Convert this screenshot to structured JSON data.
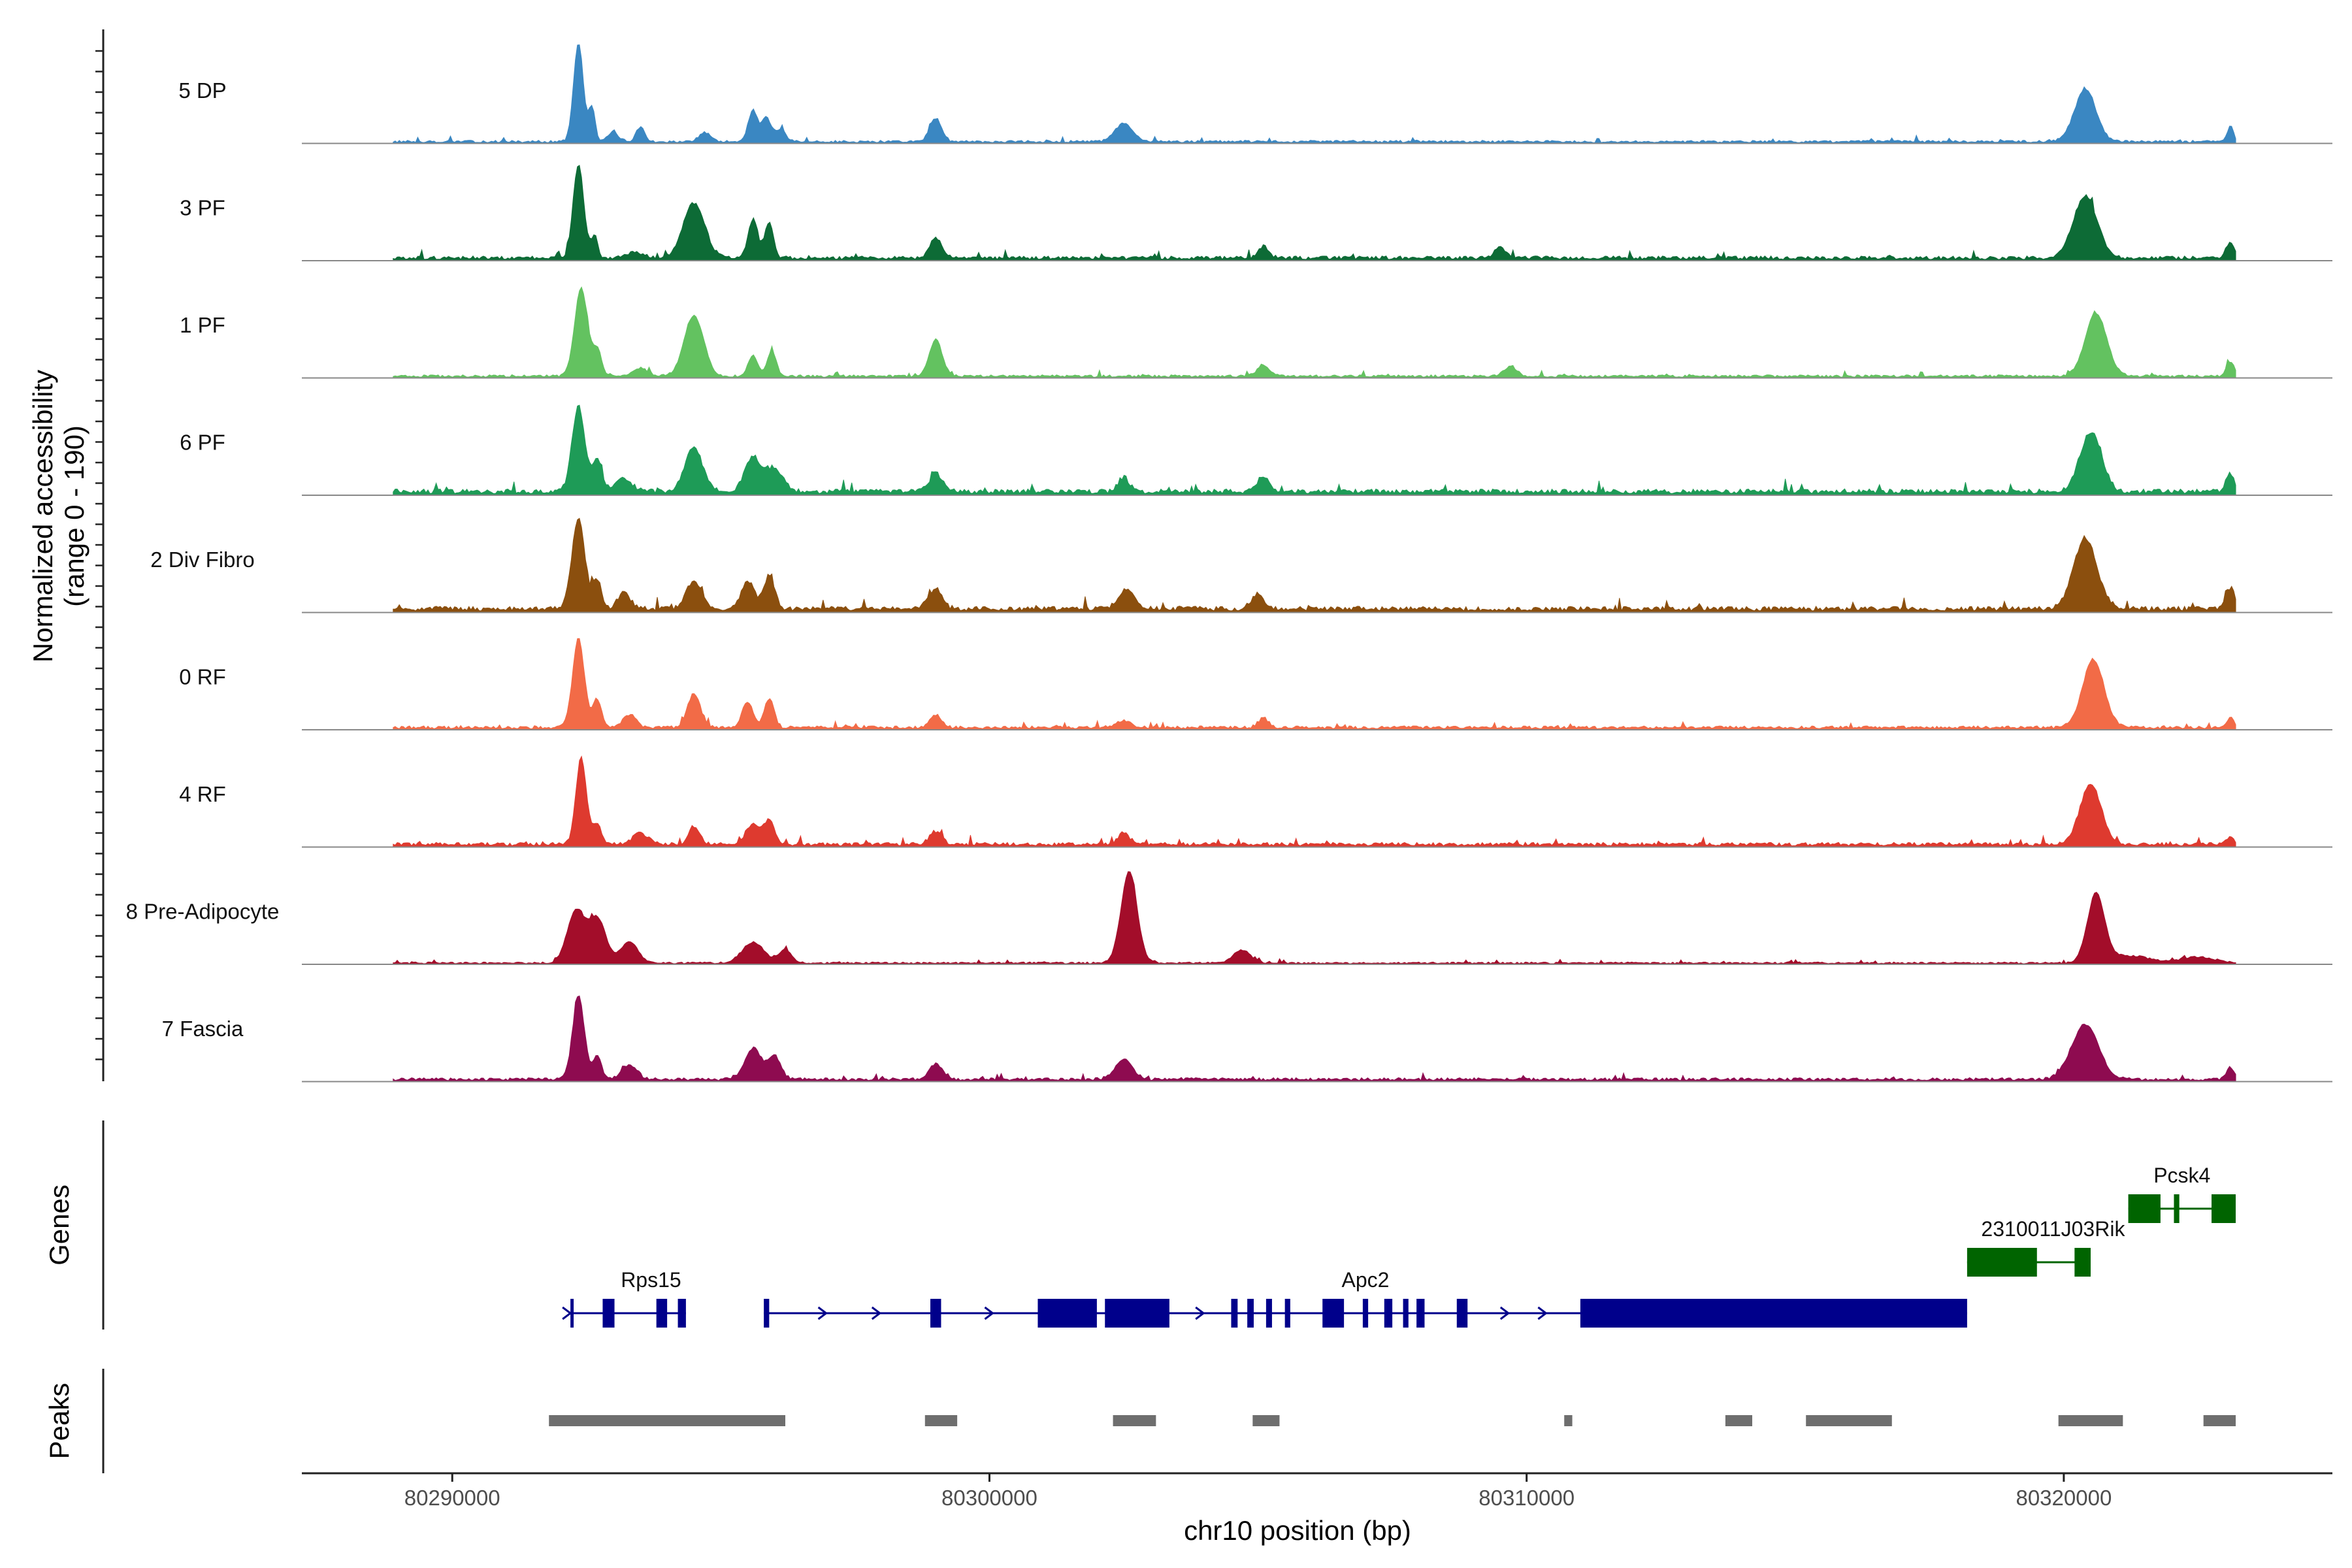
{
  "chart_data": {
    "type": "area",
    "title": "",
    "ylabel_line1": "Normalized accessibility",
    "ylabel_line2": "(range 0 - 190)",
    "genes_label": "Genes",
    "peaks_label": "Peaks",
    "xlabel": "chr10 position (bp)",
    "xlim": [
      80287200,
      80325000
    ],
    "ylim": [
      0,
      190
    ],
    "x_ticks": [
      80290000,
      80300000,
      80310000,
      80320000
    ],
    "x_tick_labels": [
      "80290000",
      "80300000",
      "80310000",
      "80320000"
    ],
    "coverage_range": [
      80288900,
      80323200
    ],
    "tracks": [
      {
        "name": "5 DP",
        "color": "#3a87c2",
        "peaks": [
          [
            80292350,
            190,
            90
          ],
          [
            80292600,
            65,
            60
          ],
          [
            80293000,
            18,
            100
          ],
          [
            80293500,
            28,
            80
          ],
          [
            80294700,
            18,
            100
          ],
          [
            80295600,
            60,
            90
          ],
          [
            80295850,
            45,
            80
          ],
          [
            80296100,
            22,
            100
          ],
          [
            80299000,
            45,
            110
          ],
          [
            80302500,
            35,
            160
          ],
          [
            80320400,
            100,
            200
          ],
          [
            80323100,
            30,
            60
          ]
        ],
        "baseline": 4
      },
      {
        "name": "3 PF",
        "color": "#0d6b36",
        "peaks": [
          [
            80292350,
            180,
            100
          ],
          [
            80292650,
            45,
            60
          ],
          [
            80293400,
            10,
            150
          ],
          [
            80294500,
            105,
            200
          ],
          [
            80295600,
            75,
            90
          ],
          [
            80295900,
            70,
            80
          ],
          [
            80299000,
            40,
            110
          ],
          [
            80305100,
            22,
            100
          ],
          [
            80309500,
            22,
            100
          ],
          [
            80320400,
            120,
            220
          ],
          [
            80323100,
            32,
            80
          ]
        ],
        "baseline": 6
      },
      {
        "name": "1 PF",
        "color": "#63c260",
        "peaks": [
          [
            80292400,
            170,
            120
          ],
          [
            80292700,
            50,
            80
          ],
          [
            80293500,
            15,
            150
          ],
          [
            80294500,
            115,
            180
          ],
          [
            80295600,
            40,
            90
          ],
          [
            80295950,
            50,
            80
          ],
          [
            80299000,
            70,
            120
          ],
          [
            80305100,
            20,
            120
          ],
          [
            80309700,
            20,
            110
          ],
          [
            80320600,
            120,
            200
          ],
          [
            80323100,
            28,
            70
          ]
        ],
        "baseline": 4
      },
      {
        "name": "6 PF",
        "color": "#1e9b57",
        "peaks": [
          [
            80292350,
            165,
            120
          ],
          [
            80292700,
            60,
            90
          ],
          [
            80293200,
            25,
            150
          ],
          [
            80294500,
            85,
            160
          ],
          [
            80295600,
            65,
            150
          ],
          [
            80296000,
            45,
            150
          ],
          [
            80299000,
            35,
            120
          ],
          [
            80302500,
            28,
            100
          ],
          [
            80305100,
            30,
            110
          ],
          [
            80320500,
            115,
            200
          ],
          [
            80323100,
            35,
            80
          ]
        ],
        "baseline": 8
      },
      {
        "name": "2 Div Fibro",
        "color": "#8b4f0e",
        "peaks": [
          [
            80292350,
            175,
            120
          ],
          [
            80292700,
            55,
            80
          ],
          [
            80293200,
            30,
            120
          ],
          [
            80294500,
            55,
            140
          ],
          [
            80295500,
            55,
            120
          ],
          [
            80295900,
            65,
            100
          ],
          [
            80299000,
            40,
            120
          ],
          [
            80302550,
            40,
            140
          ],
          [
            80305000,
            28,
            120
          ],
          [
            80320400,
            135,
            220
          ],
          [
            80323100,
            40,
            80
          ]
        ],
        "baseline": 8
      },
      {
        "name": "0 RF",
        "color": "#f26b47",
        "peaks": [
          [
            80292350,
            170,
            110
          ],
          [
            80292700,
            55,
            80
          ],
          [
            80293300,
            25,
            120
          ],
          [
            80294500,
            65,
            120
          ],
          [
            80295500,
            50,
            100
          ],
          [
            80295900,
            55,
            90
          ],
          [
            80299000,
            25,
            100
          ],
          [
            80302500,
            12,
            140
          ],
          [
            80305100,
            18,
            100
          ],
          [
            80320550,
            130,
            200
          ],
          [
            80323100,
            18,
            70
          ]
        ],
        "baseline": 5
      },
      {
        "name": "4 RF",
        "color": "#de3a2f",
        "peaks": [
          [
            80292400,
            165,
            100
          ],
          [
            80292700,
            40,
            80
          ],
          [
            80293500,
            22,
            140
          ],
          [
            80294500,
            35,
            100
          ],
          [
            80295600,
            40,
            120
          ],
          [
            80295900,
            45,
            100
          ],
          [
            80299000,
            25,
            110
          ],
          [
            80302500,
            22,
            110
          ],
          [
            80320500,
            115,
            200
          ],
          [
            80323100,
            15,
            60
          ]
        ],
        "baseline": 6
      },
      {
        "name": "8 Pre-Adipocyte",
        "color": "#a30d2a",
        "peaks": [
          [
            80292300,
            100,
            160
          ],
          [
            80292700,
            85,
            160
          ],
          [
            80293300,
            40,
            160
          ],
          [
            80295600,
            40,
            200
          ],
          [
            80296200,
            25,
            120
          ],
          [
            80302600,
            175,
            150
          ],
          [
            80304700,
            25,
            160
          ],
          [
            80320600,
            130,
            160
          ],
          [
            80321200,
            14,
            400
          ],
          [
            80322500,
            12,
            300
          ]
        ],
        "baseline": 3
      },
      {
        "name": "7 Fascia",
        "color": "#8e0b50",
        "peaks": [
          [
            80292350,
            160,
            110
          ],
          [
            80292700,
            45,
            80
          ],
          [
            80293300,
            28,
            140
          ],
          [
            80295600,
            60,
            150
          ],
          [
            80296000,
            45,
            120
          ],
          [
            80299000,
            30,
            120
          ],
          [
            80302500,
            38,
            160
          ],
          [
            80320400,
            105,
            250
          ],
          [
            80323100,
            22,
            80
          ]
        ],
        "baseline": 5
      }
    ],
    "genes": [
      {
        "name": "Rps15",
        "strand": "+",
        "color": "#00008b",
        "row": 0,
        "start": 80292200,
        "end": 80293800,
        "exons": [
          [
            80292200,
            80292260
          ],
          [
            80292800,
            80293020
          ],
          [
            80293800,
            80294000
          ],
          [
            80294200,
            80294350
          ]
        ],
        "label_x": 80293700,
        "intron_end": 80294350
      },
      {
        "name": "Apc2",
        "strand": "+",
        "color": "#00008b",
        "row": 0,
        "start": 80295800,
        "end": 80318200,
        "exons": [
          [
            80295800,
            80295900
          ],
          [
            80298900,
            80299100
          ],
          [
            80300900,
            80302000
          ],
          [
            80302150,
            80303350
          ],
          [
            80304500,
            80304620
          ],
          [
            80304800,
            80304920
          ],
          [
            80305150,
            80305260
          ],
          [
            80305500,
            80305600
          ],
          [
            80306200,
            80306600
          ],
          [
            80306950,
            80307050
          ],
          [
            80307350,
            80307500
          ],
          [
            80307700,
            80307800
          ],
          [
            80307950,
            80308100
          ],
          [
            80308700,
            80308900
          ],
          [
            80311000,
            80318200
          ]
        ],
        "label_x": 80307000
      },
      {
        "name": "2310011J03Rik",
        "strand": "+",
        "color": "#006400",
        "row": 1,
        "start": 80318200,
        "end": 80320500,
        "exons": [
          [
            80318200,
            80319500
          ],
          [
            80320200,
            80320500
          ]
        ],
        "label_x": 80319800
      },
      {
        "name": "Pcsk4",
        "strand": "-",
        "color": "#006400",
        "row": 2,
        "start": 80321200,
        "end": 80323200,
        "exons": [
          [
            80321200,
            80321800
          ],
          [
            80322050,
            80322150
          ],
          [
            80322750,
            80323200
          ]
        ],
        "label_x": 80322200
      }
    ],
    "peak_regions": [
      [
        80291800,
        80296200
      ],
      [
        80298800,
        80299400
      ],
      [
        80302300,
        80303100
      ],
      [
        80304900,
        80305400
      ],
      [
        80310700,
        80310850
      ],
      [
        80313700,
        80314200
      ],
      [
        80315200,
        80316800
      ],
      [
        80319900,
        80321100
      ],
      [
        80322600,
        80323200
      ]
    ]
  }
}
